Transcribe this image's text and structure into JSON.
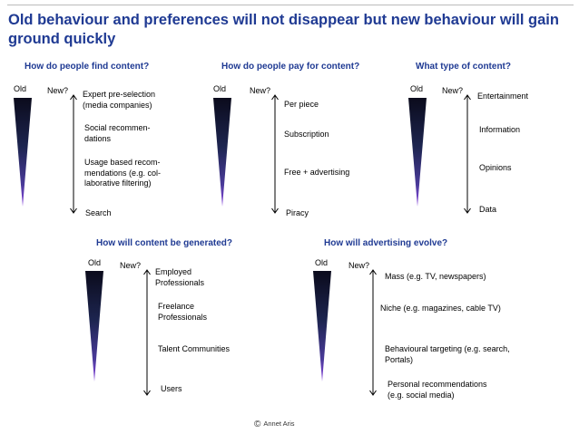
{
  "title": "Old behaviour and preferences will not disappear but new behaviour will gain ground quickly",
  "old_label": "Old",
  "new_label": "New?",
  "panels": [
    {
      "heading": "How do people find content?",
      "items": [
        "Expert pre-selection\n(media companies)",
        "Social recommen-\ndations",
        "Usage based recom-\nmendations (e.g. col-\nlaborative filtering)",
        "Search"
      ]
    },
    {
      "heading": "How do people pay for content?",
      "items": [
        "Per piece",
        "Subscription",
        "Free + advertising",
        "Piracy"
      ]
    },
    {
      "heading": "What type of content?",
      "items": [
        "Entertainment",
        "Information",
        "Opinions",
        "Data"
      ]
    },
    {
      "heading": "How will content be generated?",
      "items": [
        "Employed\nProfessionals",
        "Freelance\nProfessionals",
        "Talent Communities",
        "Users"
      ]
    },
    {
      "heading": "How will advertising evolve?",
      "items": [
        "Mass (e.g. TV, newspapers)",
        "Niche (e.g. magazines, cable TV)",
        "Behavioural targeting (e.g. search,\nPortals)",
        "Personal recommendations\n(e.g. social media)"
      ]
    }
  ],
  "footer": {
    "symbol": "©",
    "text": "Annet Aris"
  },
  "colors": {
    "title": "#1f3a93",
    "triangle_top": "#0a0a1e",
    "triangle_bottom": "#7b3fd6"
  }
}
